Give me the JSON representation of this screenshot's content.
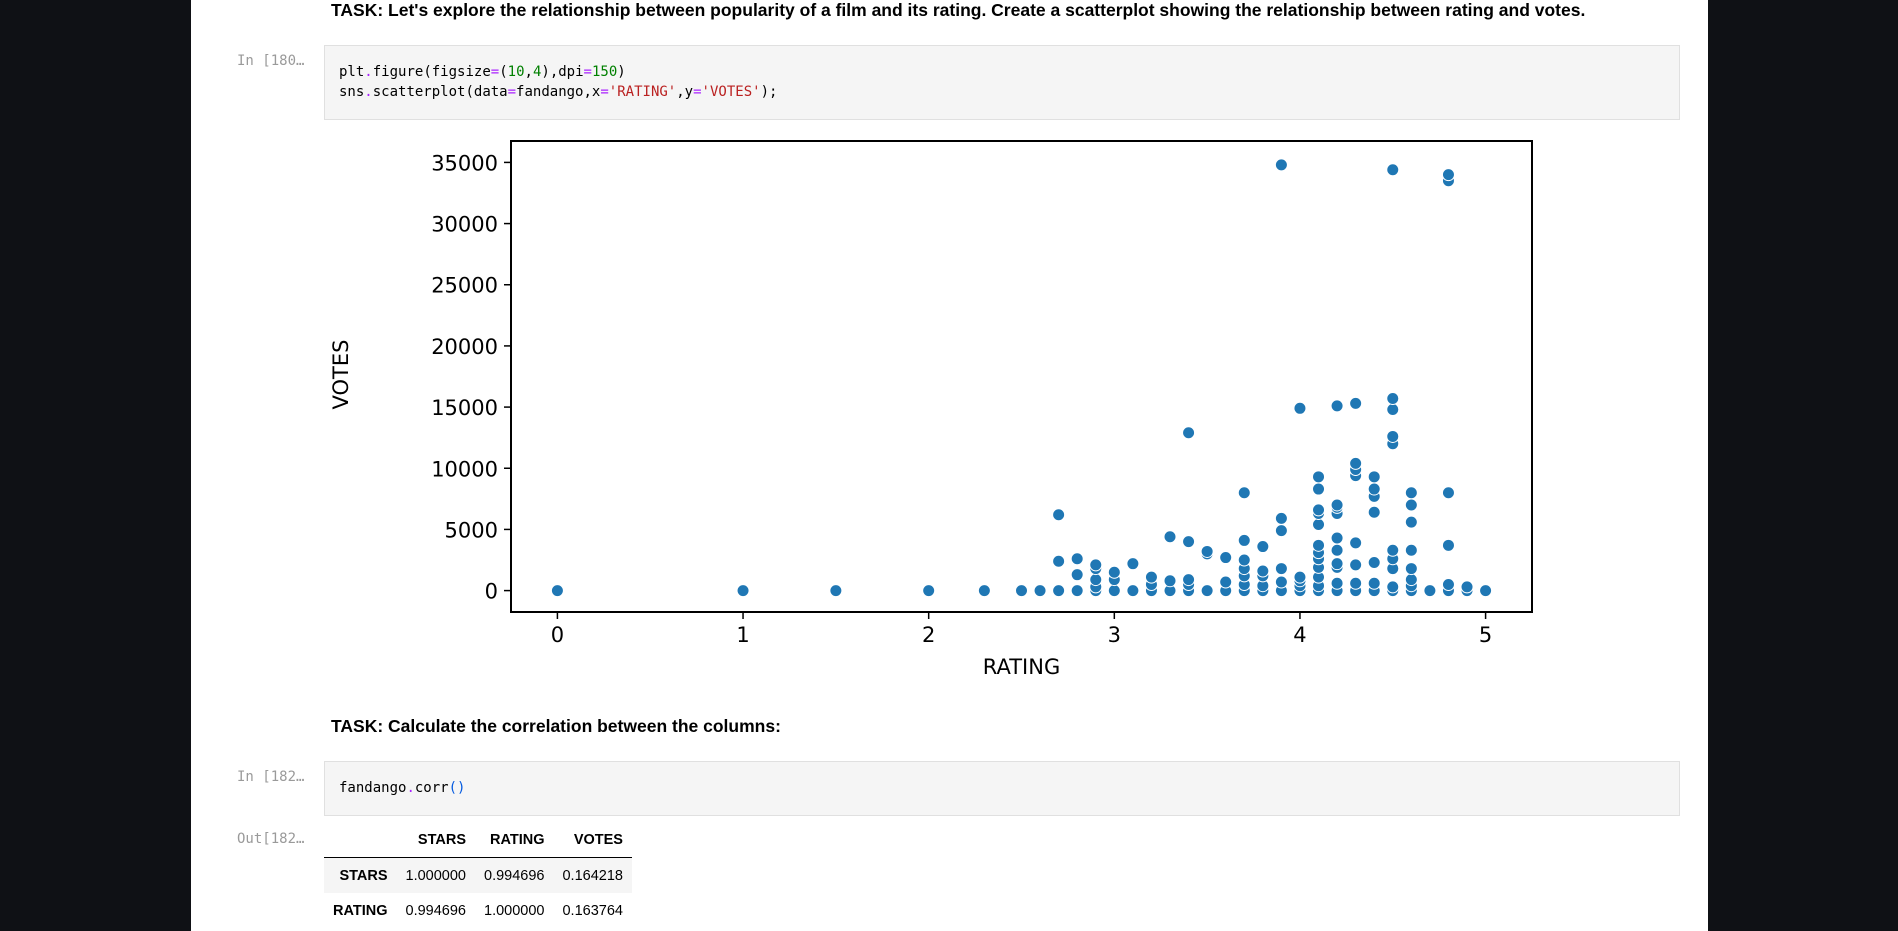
{
  "cells": {
    "task1": "TASK: Let's explore the relationship between popularity of a film and its rating. Create a scatterplot showing the relationship between rating and votes.",
    "prompt1": "In [180…",
    "code1": {
      "l1": {
        "a": "plt",
        "b": ".",
        "c": "figure",
        "d": "(",
        "e": "figsize",
        "f": "=",
        "g": "(",
        "h": "10",
        "i": ",",
        "j": "4",
        "k": ")",
        "l": ",",
        "m": "dpi",
        "n": "=",
        "o": "150",
        "p": ")"
      },
      "l2": {
        "a": "sns",
        "b": ".",
        "c": "scatterplot",
        "d": "(",
        "e": "data",
        "f": "=",
        "g": "fandango",
        "h": ",",
        "i": "x",
        "j": "=",
        "k": "'RATING'",
        "l": ",",
        "m": "y",
        "n": "=",
        "o": "'VOTES'",
        "p": ");"
      }
    },
    "task2": "TASK: Calculate the correlation between the columns:",
    "prompt2": "In [182…",
    "code2": {
      "a": "fandango",
      "b": ".",
      "c": "corr",
      "d": "()"
    },
    "out_prompt": "Out[182…",
    "corr_table": {
      "columns": [
        "",
        "STARS",
        "RATING",
        "VOTES"
      ],
      "rows": [
        {
          "label": "STARS",
          "values": [
            "1.000000",
            "0.994696",
            "0.164218"
          ]
        },
        {
          "label": "RATING",
          "values": [
            "0.994696",
            "1.000000",
            "0.163764"
          ]
        }
      ]
    }
  },
  "colors": {
    "point": "#1f77b4",
    "code_bg": "#f5f5f5",
    "keyword": "#055be0",
    "string": "#ba2121",
    "number": "#008000"
  },
  "chart_data": {
    "type": "scatter",
    "xlabel": "RATING",
    "ylabel": "VOTES",
    "xlim": [
      -0.25,
      5.25
    ],
    "ylim": [
      -1750,
      36750
    ],
    "xticks": [
      0,
      1,
      2,
      3,
      4,
      5
    ],
    "yticks": [
      0,
      5000,
      10000,
      15000,
      20000,
      25000,
      30000,
      35000
    ],
    "grid": false,
    "points": [
      {
        "x": 0,
        "y": 0
      },
      {
        "x": 1,
        "y": 0
      },
      {
        "x": 1.5,
        "y": 0
      },
      {
        "x": 2,
        "y": 0
      },
      {
        "x": 2.3,
        "y": 0
      },
      {
        "x": 2.5,
        "y": 0
      },
      {
        "x": 2.6,
        "y": 0
      },
      {
        "x": 2.7,
        "y": 0
      },
      {
        "x": 2.7,
        "y": 2400
      },
      {
        "x": 2.7,
        "y": 6200
      },
      {
        "x": 2.8,
        "y": 0
      },
      {
        "x": 2.8,
        "y": 1300
      },
      {
        "x": 2.8,
        "y": 2600
      },
      {
        "x": 2.9,
        "y": 0
      },
      {
        "x": 2.9,
        "y": 300
      },
      {
        "x": 2.9,
        "y": 900
      },
      {
        "x": 2.9,
        "y": 1800
      },
      {
        "x": 2.9,
        "y": 2100
      },
      {
        "x": 3.0,
        "y": 0
      },
      {
        "x": 3.0,
        "y": 900
      },
      {
        "x": 3.0,
        "y": 1500
      },
      {
        "x": 3.1,
        "y": 0
      },
      {
        "x": 3.1,
        "y": 2200
      },
      {
        "x": 3.2,
        "y": 0
      },
      {
        "x": 3.2,
        "y": 500
      },
      {
        "x": 3.2,
        "y": 1100
      },
      {
        "x": 3.3,
        "y": 0
      },
      {
        "x": 3.3,
        "y": 800
      },
      {
        "x": 3.3,
        "y": 4400
      },
      {
        "x": 3.4,
        "y": 0
      },
      {
        "x": 3.4,
        "y": 500
      },
      {
        "x": 3.4,
        "y": 900
      },
      {
        "x": 3.4,
        "y": 4000
      },
      {
        "x": 3.4,
        "y": 12900
      },
      {
        "x": 3.5,
        "y": 0
      },
      {
        "x": 3.5,
        "y": 3000
      },
      {
        "x": 3.5,
        "y": 3200
      },
      {
        "x": 3.6,
        "y": 0
      },
      {
        "x": 3.6,
        "y": 700
      },
      {
        "x": 3.6,
        "y": 2700
      },
      {
        "x": 3.7,
        "y": 0
      },
      {
        "x": 3.7,
        "y": 500
      },
      {
        "x": 3.7,
        "y": 1200
      },
      {
        "x": 3.7,
        "y": 1800
      },
      {
        "x": 3.7,
        "y": 2500
      },
      {
        "x": 3.7,
        "y": 4100
      },
      {
        "x": 3.7,
        "y": 8000
      },
      {
        "x": 3.8,
        "y": 0
      },
      {
        "x": 3.8,
        "y": 400
      },
      {
        "x": 3.8,
        "y": 1200
      },
      {
        "x": 3.8,
        "y": 1600
      },
      {
        "x": 3.8,
        "y": 3600
      },
      {
        "x": 3.9,
        "y": 0
      },
      {
        "x": 3.9,
        "y": 700
      },
      {
        "x": 3.9,
        "y": 1800
      },
      {
        "x": 3.9,
        "y": 4900
      },
      {
        "x": 3.9,
        "y": 5900
      },
      {
        "x": 3.9,
        "y": 34800
      },
      {
        "x": 4.0,
        "y": 0
      },
      {
        "x": 4.0,
        "y": 400
      },
      {
        "x": 4.0,
        "y": 800
      },
      {
        "x": 4.0,
        "y": 1100
      },
      {
        "x": 4.0,
        "y": 14900
      },
      {
        "x": 4.1,
        "y": 0
      },
      {
        "x": 4.1,
        "y": 400
      },
      {
        "x": 4.1,
        "y": 1100
      },
      {
        "x": 4.1,
        "y": 1900
      },
      {
        "x": 4.1,
        "y": 2600
      },
      {
        "x": 4.1,
        "y": 3100
      },
      {
        "x": 4.1,
        "y": 3700
      },
      {
        "x": 4.1,
        "y": 5400
      },
      {
        "x": 4.1,
        "y": 6300
      },
      {
        "x": 4.1,
        "y": 6600
      },
      {
        "x": 4.1,
        "y": 8300
      },
      {
        "x": 4.1,
        "y": 9300
      },
      {
        "x": 4.2,
        "y": 0
      },
      {
        "x": 4.2,
        "y": 600
      },
      {
        "x": 4.2,
        "y": 1900
      },
      {
        "x": 4.2,
        "y": 2200
      },
      {
        "x": 4.2,
        "y": 3300
      },
      {
        "x": 4.2,
        "y": 4300
      },
      {
        "x": 4.2,
        "y": 6300
      },
      {
        "x": 4.2,
        "y": 6800
      },
      {
        "x": 4.2,
        "y": 7000
      },
      {
        "x": 4.2,
        "y": 15100
      },
      {
        "x": 4.3,
        "y": 0
      },
      {
        "x": 4.3,
        "y": 600
      },
      {
        "x": 4.3,
        "y": 2100
      },
      {
        "x": 4.3,
        "y": 3900
      },
      {
        "x": 4.3,
        "y": 9400
      },
      {
        "x": 4.3,
        "y": 9900
      },
      {
        "x": 4.3,
        "y": 10400
      },
      {
        "x": 4.3,
        "y": 15300
      },
      {
        "x": 4.4,
        "y": 0
      },
      {
        "x": 4.4,
        "y": 600
      },
      {
        "x": 4.4,
        "y": 2300
      },
      {
        "x": 4.4,
        "y": 6400
      },
      {
        "x": 4.4,
        "y": 7700
      },
      {
        "x": 4.4,
        "y": 8300
      },
      {
        "x": 4.4,
        "y": 9300
      },
      {
        "x": 4.5,
        "y": 0
      },
      {
        "x": 4.5,
        "y": 300
      },
      {
        "x": 4.5,
        "y": 1800
      },
      {
        "x": 4.5,
        "y": 2600
      },
      {
        "x": 4.5,
        "y": 3300
      },
      {
        "x": 4.5,
        "y": 12000
      },
      {
        "x": 4.5,
        "y": 12600
      },
      {
        "x": 4.5,
        "y": 14800
      },
      {
        "x": 4.5,
        "y": 15700
      },
      {
        "x": 4.5,
        "y": 34400
      },
      {
        "x": 4.6,
        "y": 0
      },
      {
        "x": 4.6,
        "y": 400
      },
      {
        "x": 4.6,
        "y": 900
      },
      {
        "x": 4.6,
        "y": 1800
      },
      {
        "x": 4.6,
        "y": 3300
      },
      {
        "x": 4.6,
        "y": 5600
      },
      {
        "x": 4.6,
        "y": 7000
      },
      {
        "x": 4.6,
        "y": 8000
      },
      {
        "x": 4.7,
        "y": 0
      },
      {
        "x": 4.8,
        "y": 0
      },
      {
        "x": 4.8,
        "y": 500
      },
      {
        "x": 4.8,
        "y": 3700
      },
      {
        "x": 4.8,
        "y": 8000
      },
      {
        "x": 4.8,
        "y": 33500
      },
      {
        "x": 4.8,
        "y": 34000
      },
      {
        "x": 4.9,
        "y": 0
      },
      {
        "x": 4.9,
        "y": 300
      },
      {
        "x": 5.0,
        "y": 0
      }
    ]
  }
}
